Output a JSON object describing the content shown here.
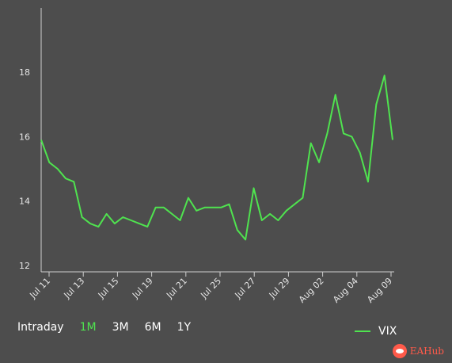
{
  "chart_data": {
    "type": "line",
    "title": "",
    "xlabel": "",
    "ylabel": "",
    "ylim": [
      11.8,
      20
    ],
    "yticks": [
      12,
      14,
      16,
      18
    ],
    "x_tick_labels": [
      "Jul 11",
      "Jul 13",
      "Jul 15",
      "Jul 19",
      "Jul 21",
      "Jul 25",
      "Jul 27",
      "Jul 29",
      "Aug 02",
      "Aug 04",
      "Aug 09"
    ],
    "grid": false,
    "legend": "bottom-right",
    "series": [
      {
        "name": "VIX",
        "color": "#4fe34f",
        "x": [
          "Jul 11",
          "Jul 11",
          "Jul 12",
          "Jul 12",
          "Jul 13",
          "Jul 13",
          "Jul 14",
          "Jul 14",
          "Jul 15",
          "Jul 15",
          "Jul 18",
          "Jul 18",
          "Jul 19",
          "Jul 19",
          "Jul 20",
          "Jul 20",
          "Jul 21",
          "Jul 21",
          "Jul 22",
          "Jul 22",
          "Jul 25",
          "Jul 25",
          "Jul 26",
          "Jul 26",
          "Jul 27",
          "Jul 27",
          "Jul 28",
          "Jul 28",
          "Jul 29",
          "Jul 29",
          "Aug 01",
          "Aug 01",
          "Aug 02",
          "Aug 02",
          "Aug 03",
          "Aug 03",
          "Aug 04",
          "Aug 04",
          "Aug 05",
          "Aug 05",
          "Aug 08",
          "Aug 08",
          "Aug 09",
          "Aug 09"
        ],
        "values": [
          15.9,
          15.2,
          15.0,
          14.7,
          14.6,
          13.5,
          13.3,
          13.2,
          13.6,
          13.3,
          13.5,
          13.4,
          13.3,
          13.2,
          13.8,
          13.8,
          13.6,
          13.4,
          14.1,
          13.7,
          13.8,
          13.8,
          13.8,
          13.9,
          13.1,
          12.8,
          14.4,
          13.4,
          13.6,
          13.4,
          13.7,
          13.9,
          14.1,
          15.8,
          15.2,
          16.1,
          17.3,
          16.1,
          16.0,
          15.5,
          14.6,
          17.0,
          17.9,
          15.9
        ]
      }
    ]
  },
  "range_selector": {
    "items": [
      "Intraday",
      "1M",
      "3M",
      "6M",
      "1Y"
    ],
    "active": "1M"
  },
  "legend": {
    "label": "VIX"
  },
  "watermark": {
    "text": "EAHub"
  }
}
